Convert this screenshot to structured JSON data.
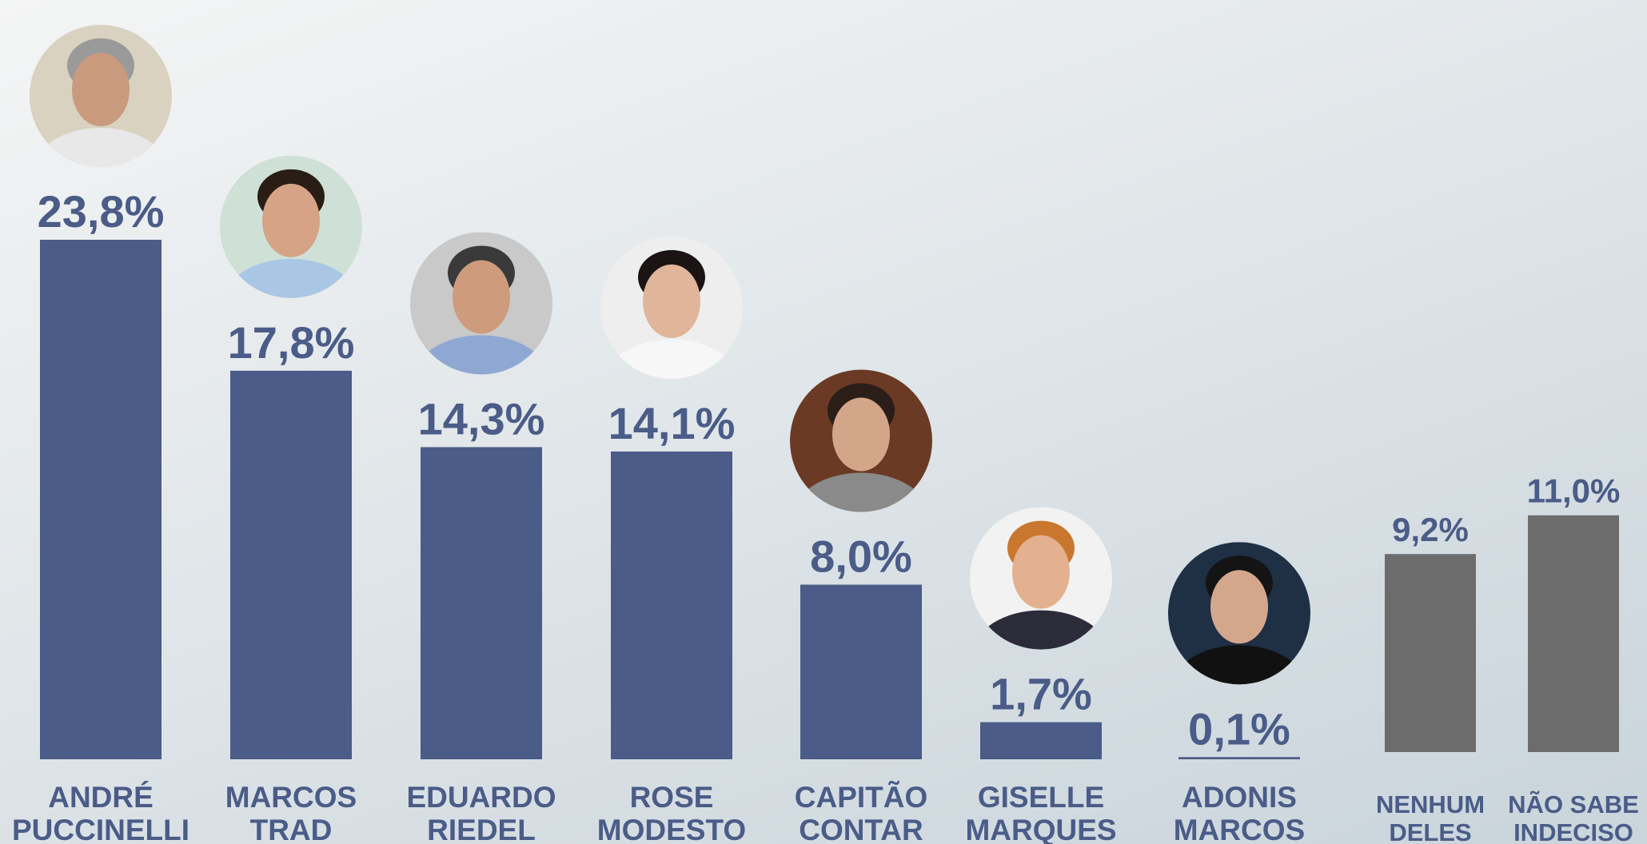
{
  "chart_data": {
    "type": "bar",
    "categories": [
      [
        "ANDRÉ",
        "PUCCINELLI"
      ],
      [
        "MARCOS",
        "TRAD"
      ],
      [
        "EDUARDO",
        "RIEDEL"
      ],
      [
        "ROSE",
        "MODESTO"
      ],
      [
        "CAPITÃO",
        "CONTAR"
      ],
      [
        "GISELLE",
        "MARQUES"
      ],
      [
        "ADONIS",
        "MARCOS"
      ],
      [
        "NENHUM",
        "DELES"
      ],
      [
        "NÃO SABE",
        "INDECISO"
      ]
    ],
    "values": [
      23.8,
      17.8,
      14.3,
      14.1,
      8.0,
      1.7,
      0.1,
      9.2,
      11.0
    ],
    "value_labels": [
      "23,8%",
      "17,8%",
      "14,3%",
      "14,1%",
      "8,0%",
      "1,7%",
      "0,1%",
      "9,2%",
      "11,0%"
    ],
    "colors": [
      "#4a5c87",
      "#4a5c87",
      "#4a5c87",
      "#4a5c87",
      "#4a5c87",
      "#4a5c87",
      "#4a5c87",
      "#6c6c6d",
      "#6c6c6d"
    ]
  }
}
